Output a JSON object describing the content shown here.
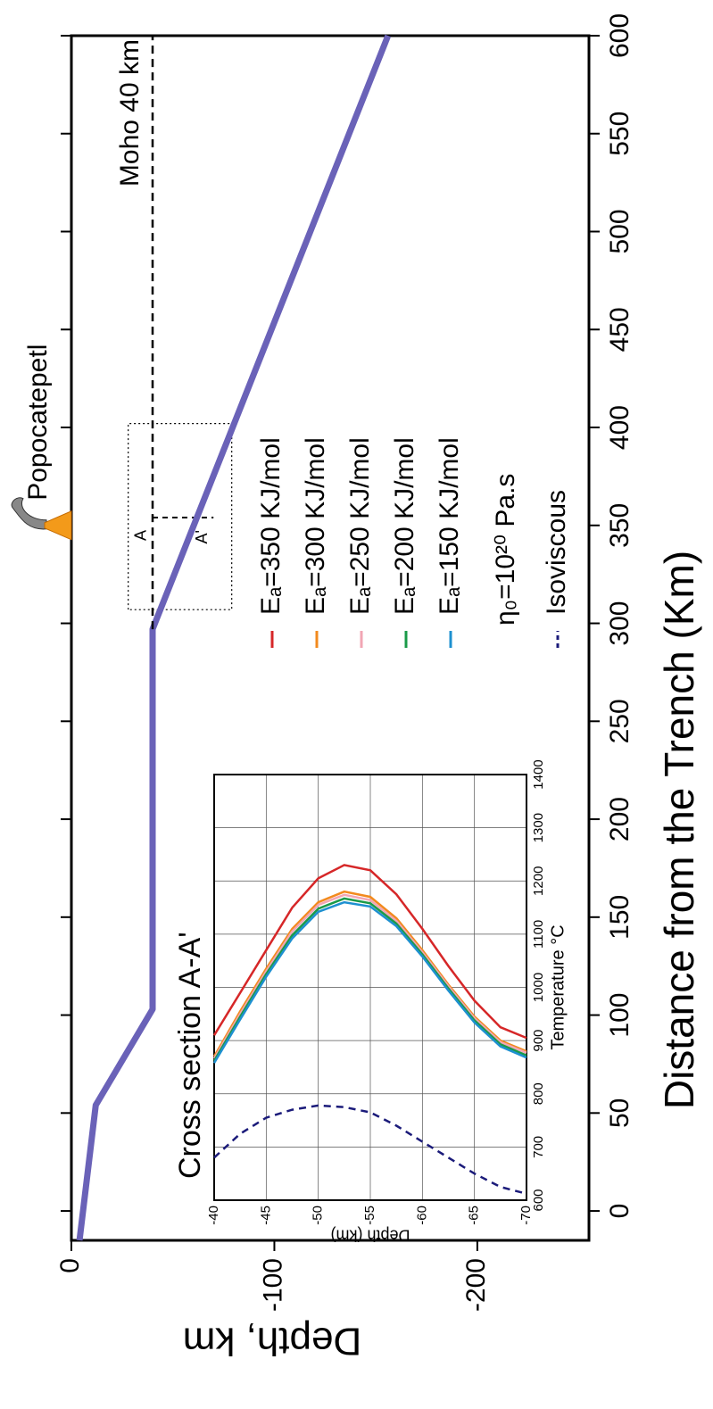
{
  "chart_data": [
    {
      "type": "line",
      "xlabel": "Distance from the Trench (Km)",
      "ylabel": "Depth, km",
      "xlim": [
        -15,
        600
      ],
      "ylim": [
        0,
        -255
      ],
      "xticks": [
        0,
        50,
        100,
        150,
        200,
        250,
        300,
        350,
        400,
        450,
        500,
        550,
        600
      ],
      "yticks": [
        0,
        -100,
        -200
      ],
      "series": [
        {
          "color": "#6a62b8",
          "x": [
            -15,
            54,
            103,
            297,
            600
          ],
          "values": [
            -4,
            -12,
            -40,
            -40,
            -156
          ]
        },
        {
          "name": "Moho 40 km",
          "color": "#000000",
          "dashed": true,
          "x": [
            297,
            600
          ],
          "values": [
            -40,
            -40
          ]
        }
      ],
      "volcano": {
        "label": "Popocatepetl",
        "x": 350
      },
      "box": {
        "x": [
          307,
          402
        ],
        "y": [
          -28,
          -79
        ]
      },
      "section": {
        "x": 354,
        "labels": [
          "A",
          "A'"
        ],
        "y": [
          -40,
          -70
        ]
      }
    },
    {
      "type": "line",
      "title": "Cross section A-A'",
      "xlabel": "Temperature °C",
      "ylabel": "Depth (km)",
      "xlim": [
        600,
        1400
      ],
      "ylim": [
        -40,
        -70
      ],
      "xticks": [
        600,
        700,
        800,
        900,
        1000,
        1100,
        1200,
        1300,
        1400
      ],
      "yticks": [
        -40,
        -45,
        -50,
        -55,
        -60,
        -65,
        -70
      ],
      "grid": true,
      "depth": [
        -40,
        -42.5,
        -45,
        -47.5,
        -50,
        -52.5,
        -55,
        -57.5,
        -60,
        -62.5,
        -65,
        -67.5,
        -70
      ],
      "legend_note": "η₀=10²⁰ Pa.s",
      "series": [
        {
          "name": "Eₐ=350 KJ/mol",
          "color": "#d62728",
          "values": [
            910,
            990,
            1070,
            1150,
            1205,
            1230,
            1220,
            1175,
            1110,
            1040,
            975,
            925,
            905
          ]
        },
        {
          "name": "Eₐ=300 KJ/mol",
          "color": "#f28a1e",
          "values": [
            870,
            955,
            1035,
            1110,
            1160,
            1180,
            1170,
            1130,
            1070,
            1005,
            945,
            900,
            880
          ]
        },
        {
          "name": "Eₐ=250 KJ/mol",
          "color": "#f2a6b4",
          "values": [
            866,
            950,
            1030,
            1105,
            1155,
            1174,
            1164,
            1125,
            1066,
            1002,
            942,
            897,
            877
          ]
        },
        {
          "name": "Eₐ=200 KJ/mol",
          "color": "#1a9a48",
          "values": [
            862,
            945,
            1025,
            1098,
            1148,
            1167,
            1158,
            1120,
            1062,
            998,
            938,
            893,
            872
          ]
        },
        {
          "name": "Eₐ=150 KJ/mol",
          "color": "#1e90d0",
          "values": [
            858,
            940,
            1020,
            1092,
            1142,
            1160,
            1152,
            1115,
            1058,
            994,
            934,
            889,
            868
          ]
        },
        {
          "name": "Isoviscous",
          "color": "#1b1b7a",
          "dashed": true,
          "values": [
            680,
            725,
            755,
            770,
            778,
            775,
            765,
            740,
            710,
            680,
            650,
            625,
            612
          ]
        }
      ]
    }
  ]
}
